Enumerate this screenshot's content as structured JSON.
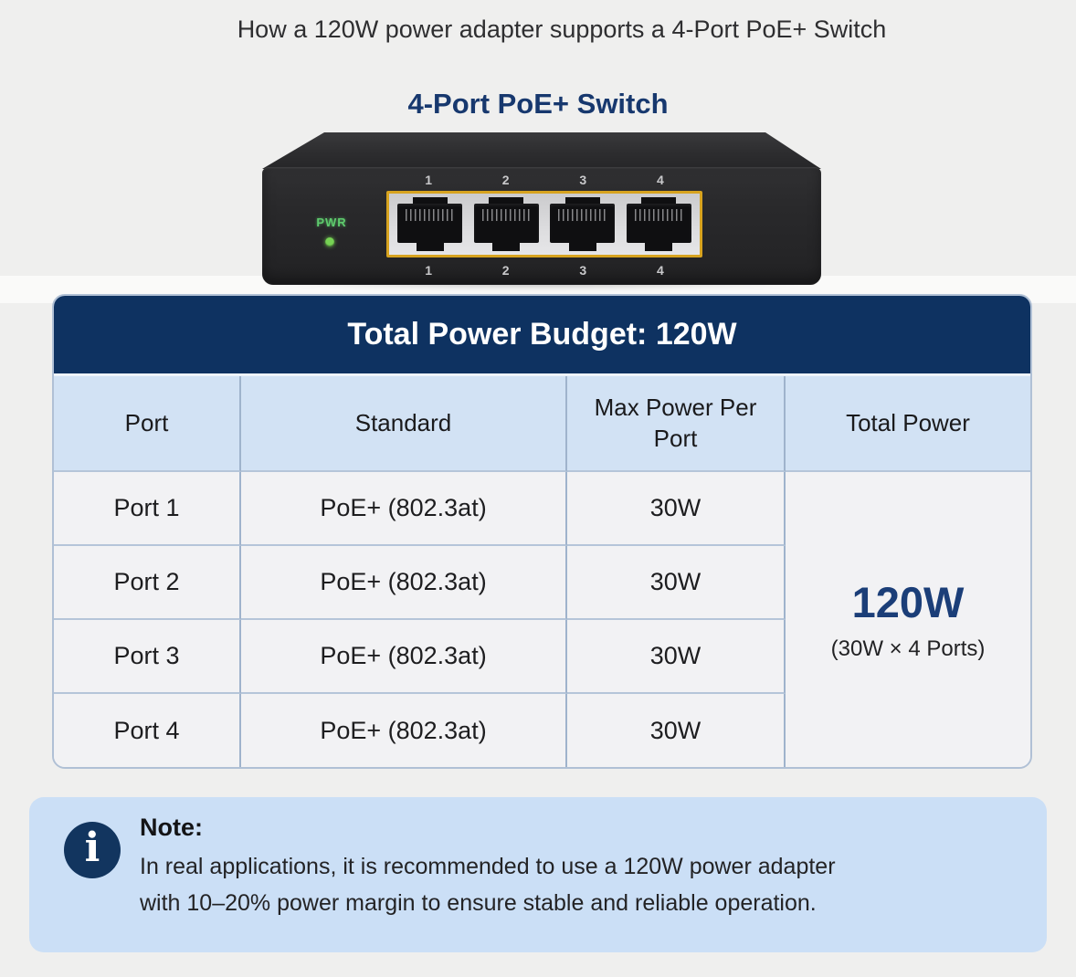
{
  "title": "How a 120W power adapter supports a 4-Port PoE+ Switch",
  "device": {
    "label": "4-Port PoE+ Switch",
    "pwr_led_label": "PWR",
    "port_numbers": [
      "1",
      "2",
      "3",
      "4"
    ]
  },
  "table": {
    "title": "Total Power Budget: 120W",
    "columns": [
      "Port",
      "Standard",
      "Max Power Per Port",
      "Total Power"
    ],
    "rows": [
      {
        "port": "Port 1",
        "standard": "PoE+ (802.3at)",
        "max_power": "30W"
      },
      {
        "port": "Port 2",
        "standard": "PoE+ (802.3at)",
        "max_power": "30W"
      },
      {
        "port": "Port 3",
        "standard": "PoE+ (802.3at)",
        "max_power": "30W"
      },
      {
        "port": "Port 4",
        "standard": "PoE+ (802.3at)",
        "max_power": "30W"
      }
    ],
    "total_power": {
      "value": "120W",
      "formula": "(30W × 4 Ports)"
    }
  },
  "note": {
    "heading": "Note:",
    "lines": [
      "In real applications, it is recommended to use a 120W power adapter",
      "with 10–20% power margin to ensure stable and reliable operation."
    ]
  },
  "colors": {
    "accent_navy": "#0e3261",
    "header_row_blue": "#d2e2f4",
    "total_value_blue": "#1b3e78",
    "note_background": "#cbdff6",
    "pwr_green": "#5ecb6d",
    "panel_yellow": "#d7a31f"
  }
}
